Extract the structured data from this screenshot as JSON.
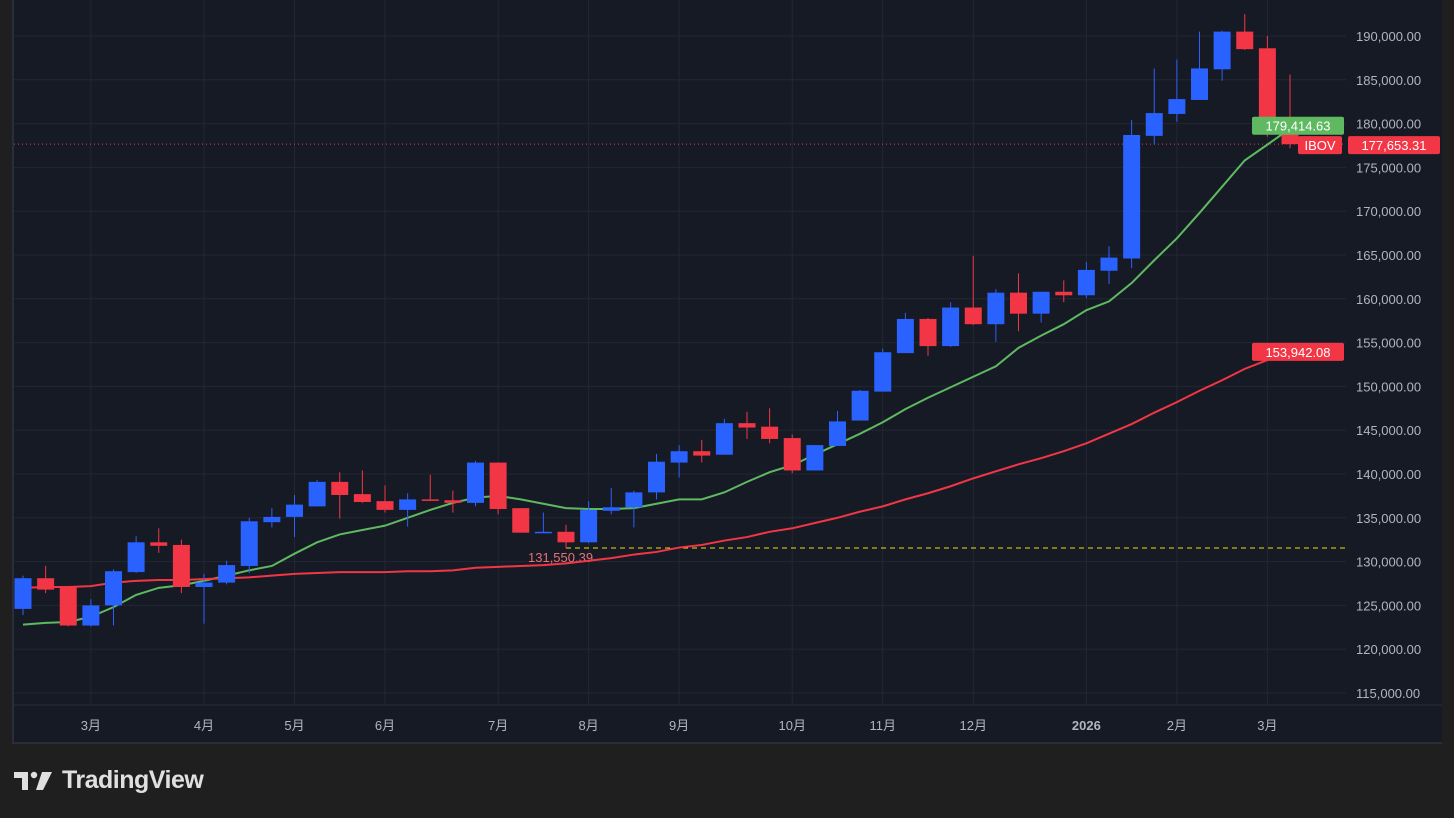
{
  "brand": {
    "name": "TradingView"
  },
  "chart_data": {
    "type": "candlestick",
    "symbol": "IBOV",
    "interval": "weekly",
    "colors": {
      "up": "#2962ff",
      "down": "#f23645",
      "ma_fast": "#5fb961",
      "ma_slow": "#f23645",
      "min_line": "#f5d90a"
    },
    "ylim": [
      113000,
      192500
    ],
    "y_ticks": [
      115000,
      120000,
      125000,
      130000,
      135000,
      140000,
      145000,
      150000,
      155000,
      160000,
      165000,
      170000,
      175000,
      180000,
      185000,
      190000
    ],
    "y_tick_labels": [
      "115,000.00",
      "120,000.00",
      "125,000.00",
      "130,000.00",
      "135,000.00",
      "140,000.00",
      "145,000.00",
      "150,000.00",
      "155,000.00",
      "160,000.00",
      "165,000.00",
      "170,000.00",
      "175,000.00",
      "180,000.00",
      "185,000.00",
      "190,000.00"
    ],
    "x_ticks": [
      {
        "index": 3,
        "label": "3月"
      },
      {
        "index": 8,
        "label": "4月"
      },
      {
        "index": 12,
        "label": "5月"
      },
      {
        "index": 16,
        "label": "6月"
      },
      {
        "index": 21,
        "label": "7月"
      },
      {
        "index": 25,
        "label": "8月"
      },
      {
        "index": 29,
        "label": "9月"
      },
      {
        "index": 34,
        "label": "10月"
      },
      {
        "index": 38,
        "label": "11月"
      },
      {
        "index": 42,
        "label": "12月"
      },
      {
        "index": 47,
        "label": "2026",
        "bold": true
      },
      {
        "index": 51,
        "label": "2月"
      },
      {
        "index": 55,
        "label": "3月"
      }
    ],
    "ohlc": [
      [
        124600,
        128400,
        123900,
        128100
      ],
      [
        128100,
        129500,
        126400,
        126800
      ],
      [
        127100,
        127200,
        122600,
        122700
      ],
      [
        122700,
        125700,
        122600,
        125000
      ],
      [
        125000,
        129100,
        122700,
        128900
      ],
      [
        128800,
        132900,
        128700,
        132200
      ],
      [
        132200,
        133800,
        131000,
        131800
      ],
      [
        131900,
        132500,
        126400,
        127100
      ],
      [
        127100,
        128600,
        122900,
        127600
      ],
      [
        127600,
        130100,
        127400,
        129600
      ],
      [
        129500,
        135000,
        128700,
        134600
      ],
      [
        134500,
        136100,
        133900,
        135100
      ],
      [
        135100,
        137600,
        132800,
        136500
      ],
      [
        136300,
        139300,
        136300,
        139100
      ],
      [
        139100,
        140200,
        134900,
        137600
      ],
      [
        137700,
        140400,
        136700,
        136800
      ],
      [
        136900,
        138700,
        135600,
        135900
      ],
      [
        135900,
        137800,
        134000,
        137100
      ],
      [
        137100,
        139900,
        137000,
        137000
      ],
      [
        137000,
        138100,
        135600,
        136700
      ],
      [
        136700,
        141500,
        136300,
        141300
      ],
      [
        141300,
        141300,
        135400,
        136000
      ],
      [
        136100,
        136100,
        133300,
        133300
      ],
      [
        133300,
        135600,
        133300,
        133400
      ],
      [
        133400,
        134200,
        131550,
        132200
      ],
      [
        132200,
        136900,
        132100,
        135900
      ],
      [
        135800,
        138400,
        135400,
        136200
      ],
      [
        136200,
        138100,
        133900,
        137900
      ],
      [
        137900,
        142300,
        137100,
        141400
      ],
      [
        141300,
        143300,
        139600,
        142600
      ],
      [
        142600,
        143900,
        141300,
        142100
      ],
      [
        142200,
        146300,
        142200,
        145800
      ],
      [
        145800,
        147100,
        144000,
        145300
      ],
      [
        145400,
        147500,
        143500,
        144000
      ],
      [
        144100,
        144500,
        140100,
        140400
      ],
      [
        140400,
        143300,
        140400,
        143300
      ],
      [
        143200,
        147200,
        143200,
        146000
      ],
      [
        146100,
        149600,
        146100,
        149500
      ],
      [
        149400,
        154300,
        149400,
        153900
      ],
      [
        153800,
        158400,
        153800,
        157700
      ],
      [
        157700,
        157800,
        153500,
        154600
      ],
      [
        154600,
        159600,
        154500,
        159000
      ],
      [
        159000,
        164900,
        157000,
        157100
      ],
      [
        157100,
        161100,
        155100,
        160700
      ],
      [
        160700,
        162900,
        156300,
        158300
      ],
      [
        158300,
        160800,
        157300,
        160800
      ],
      [
        160800,
        162100,
        159600,
        160400
      ],
      [
        160400,
        164200,
        160100,
        163300
      ],
      [
        163200,
        166000,
        161700,
        164700
      ],
      [
        164600,
        180400,
        163500,
        178700
      ],
      [
        178600,
        186300,
        177600,
        181200
      ],
      [
        181100,
        187300,
        180200,
        182800
      ],
      [
        182700,
        190500,
        182700,
        186300
      ],
      [
        186200,
        190600,
        184900,
        190500
      ],
      [
        190500,
        192500,
        188400,
        188500
      ],
      [
        188600,
        190000,
        178500,
        179100
      ],
      [
        179300,
        185600,
        177200,
        177653.31
      ]
    ],
    "ma_fast": [
      122800,
      123000,
      123100,
      123700,
      124800,
      126200,
      127000,
      127300,
      127800,
      128400,
      129000,
      129500,
      130900,
      132200,
      133100,
      133600,
      134100,
      135000,
      135900,
      136700,
      137300,
      137500,
      137100,
      136600,
      136100,
      136000,
      136000,
      136100,
      136600,
      137100,
      137100,
      137900,
      139100,
      140200,
      141000,
      142200,
      143400,
      144600,
      145900,
      147400,
      148700,
      149900,
      151100,
      152300,
      154400,
      155800,
      157100,
      158700,
      159700,
      161800,
      164400,
      166900,
      169800,
      172800,
      175800,
      177600,
      179414.63
    ],
    "ma_slow": [
      127000,
      127100,
      127100,
      127200,
      127600,
      127800,
      127900,
      127900,
      128000,
      128100,
      128200,
      128400,
      128600,
      128700,
      128800,
      128800,
      128800,
      128900,
      128900,
      129000,
      129300,
      129400,
      129500,
      129600,
      129800,
      130100,
      130400,
      130800,
      131100,
      131600,
      131900,
      132400,
      132800,
      133400,
      133800,
      134400,
      135000,
      135700,
      136300,
      137100,
      137800,
      138600,
      139500,
      140300,
      141100,
      141800,
      142600,
      143500,
      144600,
      145700,
      147000,
      148200,
      149500,
      150700,
      152000,
      153000,
      153942.08
    ],
    "price_tags": {
      "ma_fast": "179,414.63",
      "symbol": "IBOV",
      "last": "177,653.31",
      "ma_slow": "153,942.08"
    },
    "last_price": 177653.31,
    "min_marker": {
      "index": 24,
      "value": 131550.39,
      "label": "131,550.39"
    }
  }
}
